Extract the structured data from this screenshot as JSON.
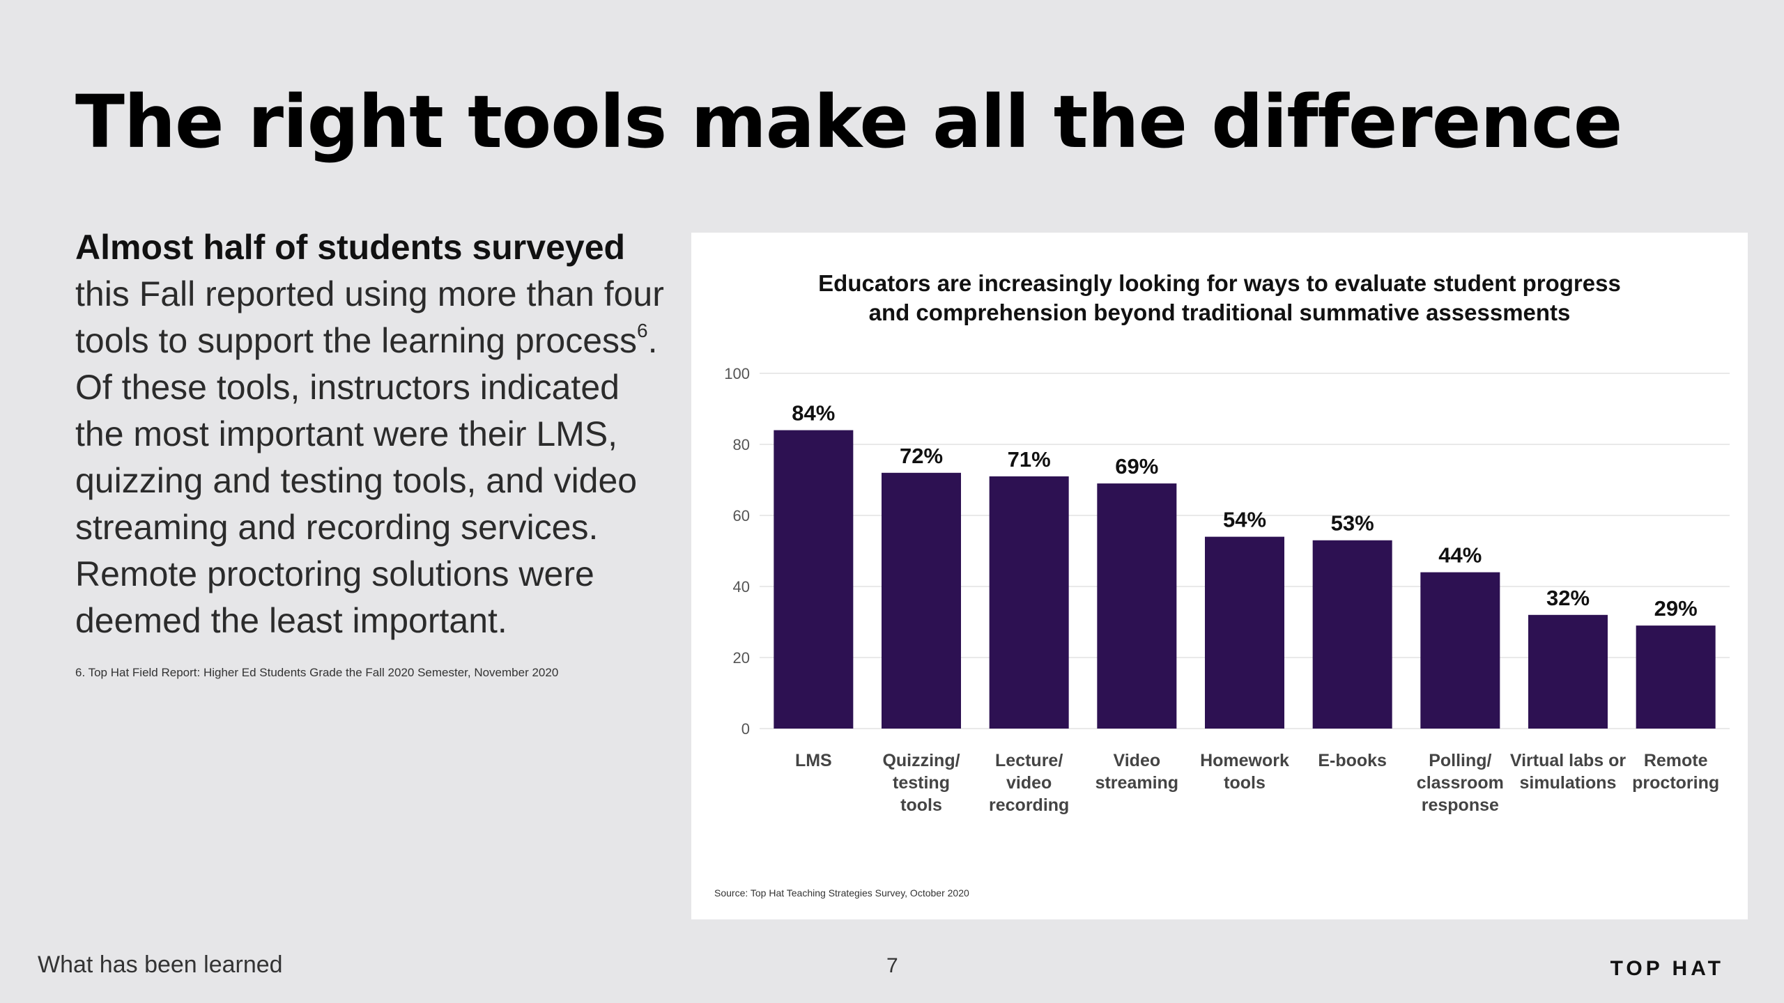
{
  "page": {
    "title": "The right tools make all the difference",
    "body_lead": "Almost half of students surveyed",
    "body_rest": " this Fall reported using more than four tools to support the learning process",
    "body_sup": "6",
    "body_tail": ". Of these tools, instructors indicated the most important were their LMS, quizzing and testing tools, and video streaming and recording services. Remote proctoring solutions were deemed the least important.",
    "footnote": "6. Top Hat Field Report: Higher Ed Students Grade the Fall 2020 Semester, November 2020",
    "footer_left": "What has been learned",
    "page_number": "7",
    "brand": "TOP HAT"
  },
  "chart_data": {
    "type": "bar",
    "title_lines": [
      "Educators are increasingly looking for ways to evaluate student progress",
      "and comprehension beyond traditional summative assessments"
    ],
    "categories": [
      "LMS",
      "Quizzing/ testing tools",
      "Lecture/ video recording",
      "Video streaming",
      "Homework tools",
      "E-books",
      "Polling/ classroom response",
      "Virtual labs or simulations",
      "Remote proctoring"
    ],
    "category_lines": [
      [
        "LMS"
      ],
      [
        "Quizzing/",
        "testing",
        "tools"
      ],
      [
        "Lecture/",
        "video",
        "recording"
      ],
      [
        "Video",
        "streaming"
      ],
      [
        "Homework",
        "tools"
      ],
      [
        "E-books"
      ],
      [
        "Polling/",
        "classroom",
        "response"
      ],
      [
        "Virtual labs or",
        "simulations"
      ],
      [
        "Remote",
        "proctoring"
      ]
    ],
    "values": [
      84,
      72,
      71,
      69,
      54,
      53,
      44,
      32,
      29
    ],
    "data_labels": [
      "84%",
      "72%",
      "71%",
      "69%",
      "54%",
      "53%",
      "44%",
      "32%",
      "29%"
    ],
    "ylim": [
      0,
      100
    ],
    "yticks": [
      0,
      20,
      40,
      60,
      80,
      100
    ],
    "grid": true,
    "legend": "none",
    "bar_color": "#2d1152",
    "source": "Source: Top Hat Teaching Strategies Survey, October 2020"
  }
}
